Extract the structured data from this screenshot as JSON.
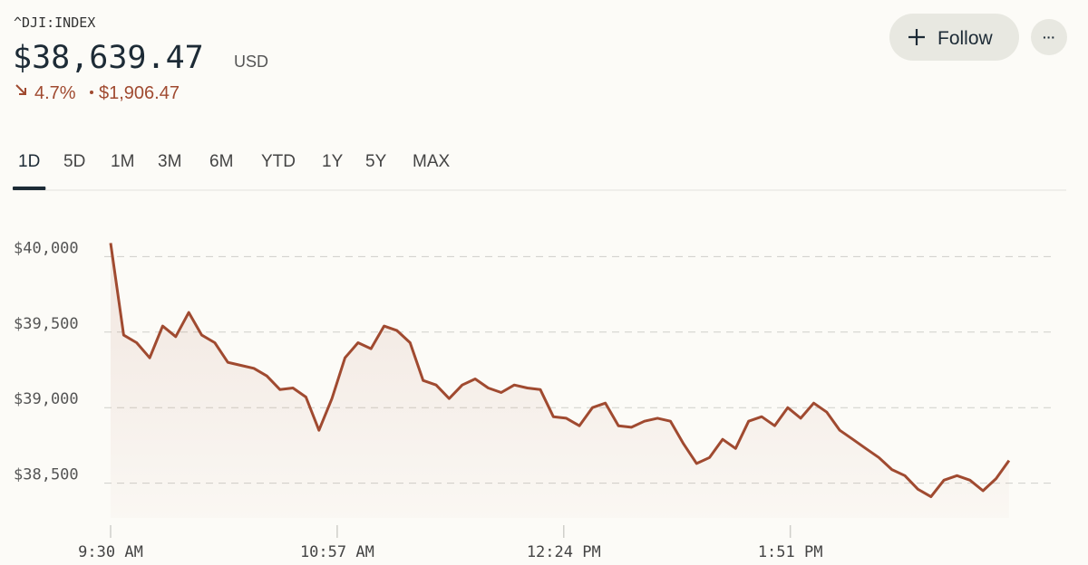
{
  "header": {
    "symbol": "^DJI:INDEX",
    "price": "$38,639.47",
    "currency": "USD",
    "change": {
      "percent": "4.7%",
      "amount": "$1,906.47"
    }
  },
  "actions": {
    "follow": "Follow",
    "more": "···"
  },
  "tabs": {
    "items": [
      "1D",
      "5D",
      "1M",
      "3M",
      "6M",
      "YTD",
      "1Y",
      "5Y",
      "MAX"
    ],
    "active": "1D"
  },
  "chart_data": {
    "type": "line",
    "x": [
      "9:30 AM",
      "9:35 AM",
      "9:40 AM",
      "9:45 AM",
      "9:50 AM",
      "9:55 AM",
      "10:00 AM",
      "10:05 AM",
      "10:10 AM",
      "10:15 AM",
      "10:20 AM",
      "10:25 AM",
      "10:30 AM",
      "10:35 AM",
      "10:40 AM",
      "10:45 AM",
      "10:50 AM",
      "10:55 AM",
      "11:00 AM",
      "11:05 AM",
      "11:10 AM",
      "11:15 AM",
      "11:20 AM",
      "11:25 AM",
      "11:30 AM",
      "11:35 AM",
      "11:40 AM",
      "11:45 AM",
      "11:50 AM",
      "11:55 AM",
      "12:00 PM",
      "12:05 PM",
      "12:10 PM",
      "12:15 PM",
      "12:20 PM",
      "12:25 PM",
      "12:30 PM",
      "12:35 PM",
      "12:40 PM",
      "12:45 PM",
      "12:50 PM",
      "12:55 PM",
      "1:00 PM",
      "1:05 PM",
      "1:10 PM",
      "1:15 PM",
      "1:20 PM",
      "1:25 PM",
      "1:30 PM",
      "1:35 PM",
      "1:40 PM",
      "1:45 PM",
      "1:50 PM",
      "1:55 PM",
      "2:00 PM",
      "2:05 PM",
      "2:10 PM",
      "2:15 PM",
      "2:20 PM",
      "2:25 PM",
      "2:30 PM",
      "2:35 PM",
      "2:40 PM",
      "2:45 PM",
      "2:50 PM",
      "2:55 PM",
      "3:00 PM",
      "3:05 PM",
      "3:10 PM",
      "3:15 PM"
    ],
    "series": [
      {
        "name": "^DJI",
        "color": "#a04a30",
        "values": [
          40090,
          39480,
          39430,
          39330,
          39540,
          39470,
          39630,
          39480,
          39430,
          39300,
          39280,
          39260,
          39210,
          39120,
          39130,
          39070,
          38850,
          39060,
          39330,
          39430,
          39390,
          39540,
          39510,
          39430,
          39180,
          39150,
          39060,
          39150,
          39190,
          39130,
          39100,
          39150,
          39130,
          39120,
          38940,
          38930,
          38880,
          39000,
          39030,
          38880,
          38870,
          38910,
          38930,
          38910,
          38760,
          38630,
          38670,
          38790,
          38730,
          38910,
          38940,
          38880,
          39000,
          38930,
          39030,
          38970,
          38850,
          38790,
          38730,
          38670,
          38590,
          38550,
          38460,
          38410,
          38520,
          38550,
          38520,
          38450,
          38530,
          38650
        ]
      }
    ],
    "xlim": [
      "9:30 AM",
      "3:30 PM"
    ],
    "xticks": [
      "9:30 AM",
      "10:57 AM",
      "12:24 PM",
      "1:51 PM"
    ],
    "ylim": [
      38270,
      40200
    ],
    "yticks": [
      {
        "value": 38500,
        "label": "$38,500"
      },
      {
        "value": 39000,
        "label": "$39,000"
      },
      {
        "value": 39500,
        "label": "$39,500"
      },
      {
        "value": 40000,
        "label": "$40,000"
      }
    ],
    "grid": true
  }
}
